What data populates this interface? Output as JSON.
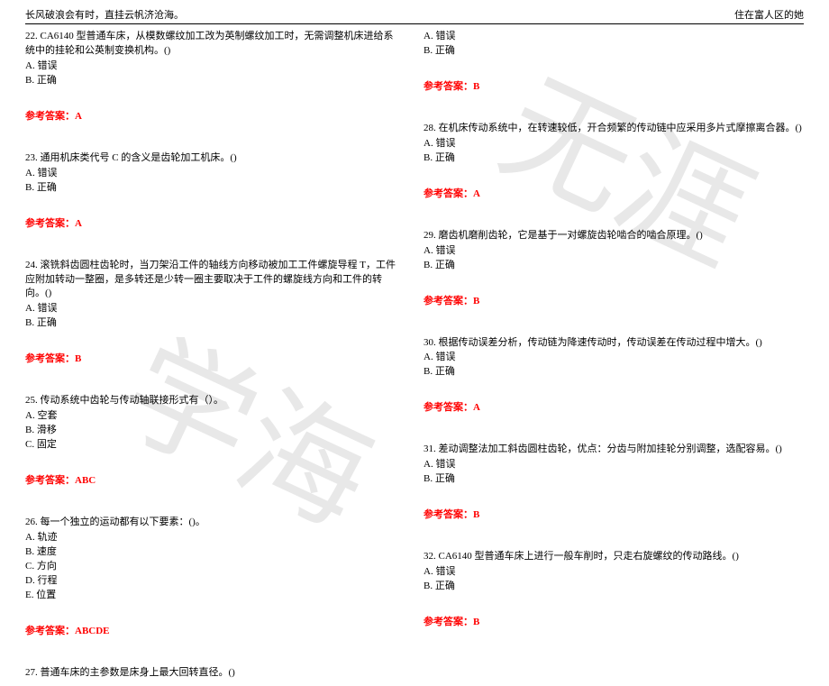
{
  "header": {
    "left": "长风破浪会有时，直挂云帆济沧海。",
    "right": "住在富人区的她"
  },
  "watermark": {
    "text1": "学海",
    "text2": "无涯"
  },
  "answer_label": "参考答案：",
  "left_col": [
    {
      "stem": "22. CA6140 型普通车床，从模数螺纹加工改为英制螺纹加工时，无需调整机床进给系统中的挂轮和公英制变换机构。()",
      "opts": [
        "A. 错误",
        "B. 正确"
      ],
      "ans": "A"
    },
    {
      "stem": "23. 通用机床类代号 C 的含义是齿轮加工机床。()",
      "opts": [
        "A. 错误",
        "B. 正确"
      ],
      "ans": "A"
    },
    {
      "stem": "24. 滚铣斜齿圆柱齿轮时，当刀架沿工件的轴线方向移动被加工工件螺旋导程 T，工件应附加转动一整圈，是多转还是少转一圈主要取决于工件的螺旋线方向和工件的转向。()",
      "opts": [
        "A. 错误",
        "B. 正确"
      ],
      "ans": "B"
    },
    {
      "stem": "25. 传动系统中齿轮与传动轴联接形式有（）。",
      "opts": [
        "A. 空套",
        "B. 滑移",
        "C. 固定"
      ],
      "ans": "ABC"
    },
    {
      "stem": "26. 每一个独立的运动都有以下要素：()。",
      "opts": [
        "A. 轨迹",
        "B. 速度",
        "C. 方向",
        "D. 行程",
        "E. 位置"
      ],
      "ans": "ABCDE"
    },
    {
      "stem": "27. 普通车床的主参数是床身上最大回转直径。()",
      "opts": [],
      "ans": null
    }
  ],
  "right_col": [
    {
      "stem": null,
      "opts": [
        "A. 错误",
        "B. 正确"
      ],
      "ans": "B"
    },
    {
      "stem": "28. 在机床传动系统中，在转速较低，开合频繁的传动链中应采用多片式摩擦离合器。()",
      "opts": [
        "A. 错误",
        "B. 正确"
      ],
      "ans": "A"
    },
    {
      "stem": "29. 磨齿机磨削齿轮，它是基于一对螺旋齿轮啮合的啮合原理。()",
      "opts": [
        "A. 错误",
        "B. 正确"
      ],
      "ans": "B"
    },
    {
      "stem": "30. 根据传动误差分析，传动链为降速传动时，传动误差在传动过程中增大。()",
      "opts": [
        "A. 错误",
        "B. 正确"
      ],
      "ans": "A"
    },
    {
      "stem": "31. 差动调整法加工斜齿圆柱齿轮，优点：分齿与附加挂轮分别调整，选配容易。()",
      "opts": [
        "A. 错误",
        "B. 正确"
      ],
      "ans": "B"
    },
    {
      "stem": "32. CA6140 型普通车床上进行一般车削时，只走右旋螺纹的传动路线。()",
      "opts": [
        "A. 错误",
        "B. 正确"
      ],
      "ans": "B"
    }
  ]
}
